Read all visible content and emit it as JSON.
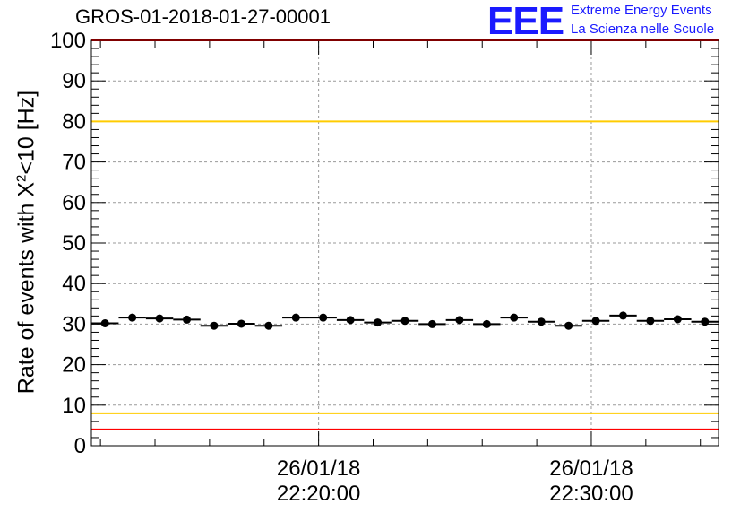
{
  "chart_data": {
    "type": "scatter",
    "title": "GROS-01-2018-01-27-00001",
    "ylabel_pre": "Rate of events with X",
    "ylabel_sup": "2",
    "ylabel_post": "<10 [Hz]",
    "xlabel": "",
    "ylim": [
      0,
      100
    ],
    "yticks": [
      "0",
      "10",
      "20",
      "30",
      "40",
      "50",
      "60",
      "70",
      "80",
      "90",
      "100"
    ],
    "xlim": [
      "26/01/18 22:11:40",
      "26/01/18 22:34:40"
    ],
    "xtick_labels": [
      {
        "date": "26/01/18",
        "time": "22:20:00"
      },
      {
        "date": "26/01/18",
        "time": "22:30:00"
      }
    ],
    "grid": true,
    "points": [
      {
        "x": "22:12:10",
        "y": 30.2
      },
      {
        "x": "22:13:10",
        "y": 31.6
      },
      {
        "x": "22:14:10",
        "y": 31.4
      },
      {
        "x": "22:15:10",
        "y": 31.1
      },
      {
        "x": "22:16:10",
        "y": 29.6
      },
      {
        "x": "22:17:10",
        "y": 30.1
      },
      {
        "x": "22:18:10",
        "y": 29.6
      },
      {
        "x": "22:19:10",
        "y": 31.6
      },
      {
        "x": "22:20:10",
        "y": 31.6
      },
      {
        "x": "22:21:10",
        "y": 31.0
      },
      {
        "x": "22:22:10",
        "y": 30.4
      },
      {
        "x": "22:23:10",
        "y": 30.8
      },
      {
        "x": "22:24:10",
        "y": 30.0
      },
      {
        "x": "22:25:10",
        "y": 31.0
      },
      {
        "x": "22:26:10",
        "y": 30.0
      },
      {
        "x": "22:27:10",
        "y": 31.6
      },
      {
        "x": "22:28:10",
        "y": 30.6
      },
      {
        "x": "22:29:10",
        "y": 29.6
      },
      {
        "x": "22:30:10",
        "y": 30.8
      },
      {
        "x": "22:31:10",
        "y": 32.1
      },
      {
        "x": "22:32:10",
        "y": 30.8
      },
      {
        "x": "22:33:10",
        "y": 31.2
      },
      {
        "x": "22:34:10",
        "y": 30.6
      }
    ],
    "point_half_width_seconds": 30,
    "reference_lines": [
      {
        "y": 100,
        "color": "#ff0000"
      },
      {
        "y": 80,
        "color": "#ffcc00"
      },
      {
        "y": 8,
        "color": "#ffcc00"
      },
      {
        "y": 4,
        "color": "#ff0000"
      }
    ]
  },
  "logo": {
    "mark": "EEE",
    "line1": "Extreme Energy Events",
    "line2": "La Scienza nelle Scuole",
    "color": "#1a1aff"
  }
}
